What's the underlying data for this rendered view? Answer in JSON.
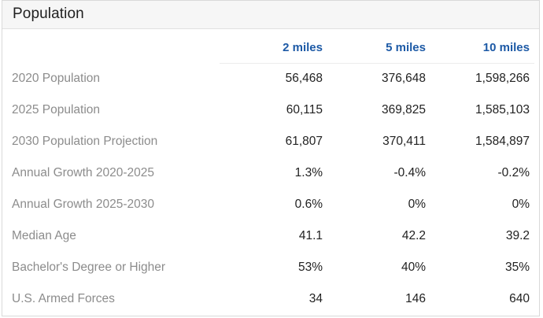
{
  "panel": {
    "title": "Population",
    "columns": [
      "2 miles",
      "5 miles",
      "10 miles"
    ],
    "rows": [
      {
        "label": "2020 Population",
        "values": [
          "56,468",
          "376,648",
          "1,598,266"
        ]
      },
      {
        "label": "2025 Population",
        "values": [
          "60,115",
          "369,825",
          "1,585,103"
        ]
      },
      {
        "label": "2030 Population Projection",
        "values": [
          "61,807",
          "370,411",
          "1,584,897"
        ]
      },
      {
        "label": "Annual Growth 2020-2025",
        "values": [
          "1.3%",
          "-0.4%",
          "-0.2%"
        ]
      },
      {
        "label": "Annual Growth 2025-2030",
        "values": [
          "0.6%",
          "0%",
          "0%"
        ]
      },
      {
        "label": "Median Age",
        "values": [
          "41.1",
          "42.2",
          "39.2"
        ]
      },
      {
        "label": "Bachelor's Degree or Higher",
        "values": [
          "53%",
          "40%",
          "35%"
        ]
      },
      {
        "label": "U.S. Armed Forces",
        "values": [
          "34",
          "146",
          "640"
        ]
      }
    ]
  },
  "colors": {
    "header_accent": "#1d5aa6",
    "label_gray": "#8c8c8c"
  }
}
